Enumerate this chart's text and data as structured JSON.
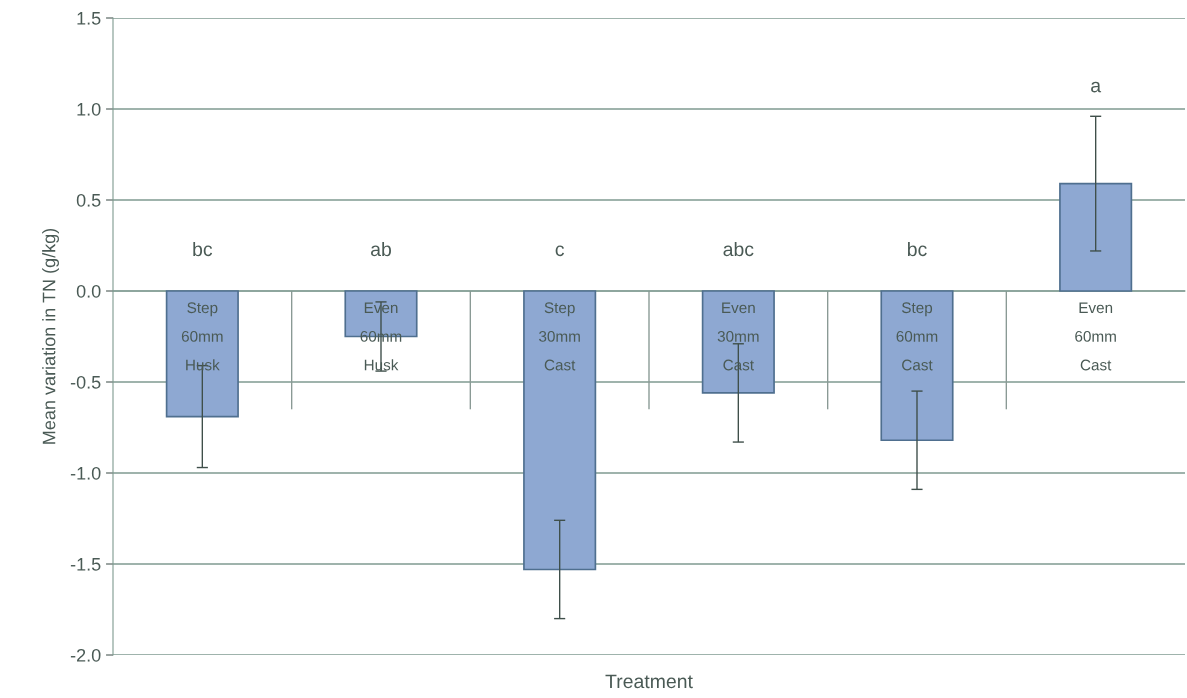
{
  "chart_data": {
    "type": "bar",
    "xlabel": "Treatment",
    "ylabel": "Mean variation in TN (g/kg)",
    "categories": [
      "Step\n60mm\nHusk",
      "Even\n60mm\nHusk",
      "Step\n30mm\nCast",
      "Even\n30mm\nCast",
      "Step\n60mm\nCast",
      "Even\n60mm\nCast"
    ],
    "values": [
      -0.69,
      -0.25,
      -1.53,
      -0.56,
      -0.82,
      0.59
    ],
    "errors": [
      0.28,
      0.19,
      0.27,
      0.27,
      0.27,
      0.37
    ],
    "color": "#8ea8d2",
    "ylim": [
      -2.0,
      1.5
    ],
    "yticks": [
      {
        "value": -2.0,
        "label": "-2.0"
      },
      {
        "value": -1.5,
        "label": "-1.5"
      },
      {
        "value": -1.0,
        "label": "-1.0"
      },
      {
        "value": -0.5,
        "label": "-0.5"
      },
      {
        "value": 0.0,
        "label": "0.0"
      },
      {
        "value": 0.5,
        "label": "0.5"
      },
      {
        "value": 1.0,
        "label": "1.0"
      },
      {
        "value": 1.5,
        "label": "1.5"
      }
    ],
    "grid": "y",
    "annotations": [
      "bc",
      "ab",
      "c",
      "abc",
      "bc",
      "a"
    ]
  }
}
